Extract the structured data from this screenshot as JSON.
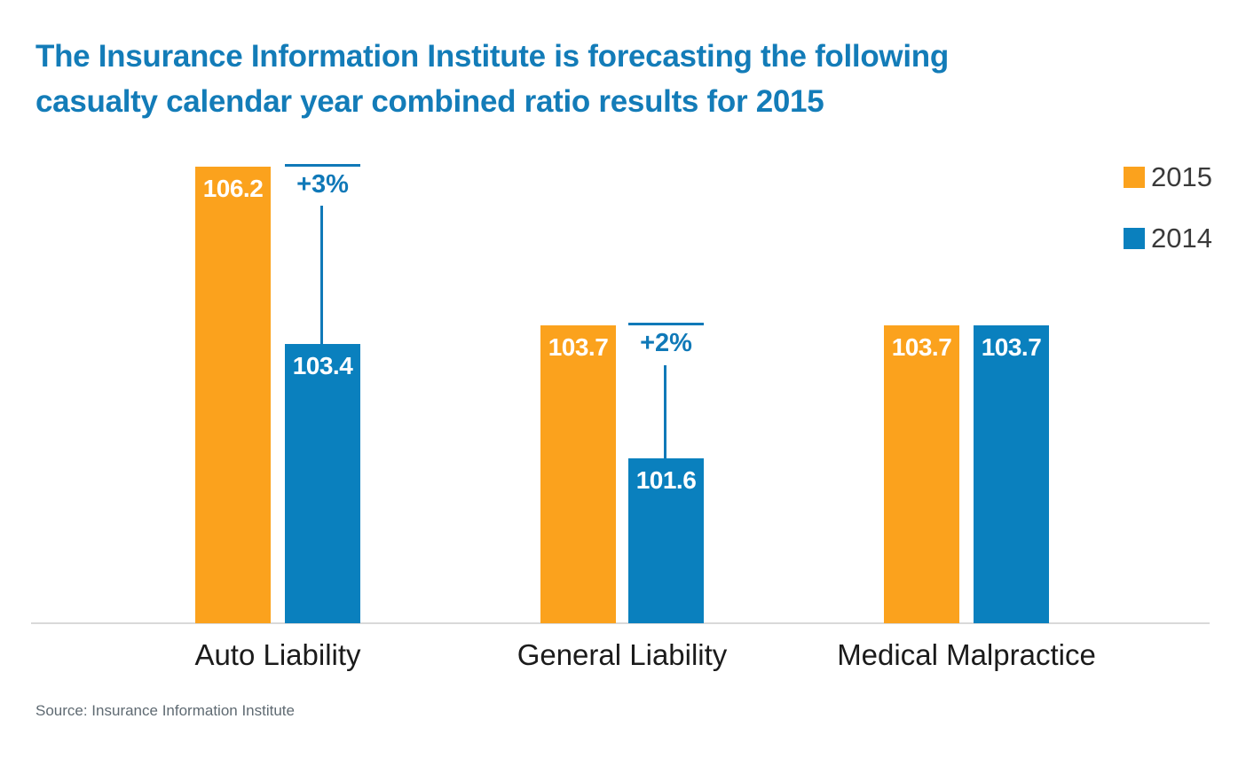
{
  "title": {
    "line1": "The Insurance Information Institute is forecasting the following",
    "line2": "casualty calendar year combined ratio results for 2015"
  },
  "legend": {
    "items": [
      {
        "label": "2015",
        "color": "#FBA21D"
      },
      {
        "label": "2014",
        "color": "#0A80BE"
      }
    ]
  },
  "source": "Source: Insurance Information Institute",
  "colors": {
    "title_blue": "#137CB8",
    "bar_orange": "#FBA21D",
    "bar_blue": "#0A80BE",
    "annotation_blue": "#1079B8",
    "baseline_gray": "#d9d9d9",
    "value_label": "#ffffff"
  },
  "chart_data": {
    "type": "bar",
    "categories": [
      "Auto Liability",
      "General Liability",
      "Medical Malpractice"
    ],
    "series": [
      {
        "name": "2015",
        "color": "#FBA21D",
        "values": [
          106.2,
          103.7,
          103.7
        ]
      },
      {
        "name": "2014",
        "color": "#0A80BE",
        "values": [
          103.4,
          101.6,
          103.7
        ]
      }
    ],
    "annotations": [
      {
        "category": "Auto Liability",
        "label": "+3%"
      },
      {
        "category": "General Liability",
        "label": "+2%"
      }
    ],
    "title": "The Insurance Information Institute is forecasting the following casualty calendar year combined ratio results for 2015",
    "xlabel": "",
    "ylabel": "",
    "ylim": [
      99,
      106.6
    ],
    "grid": false,
    "legend_position": "top-right",
    "value_labels": "inside-top"
  }
}
